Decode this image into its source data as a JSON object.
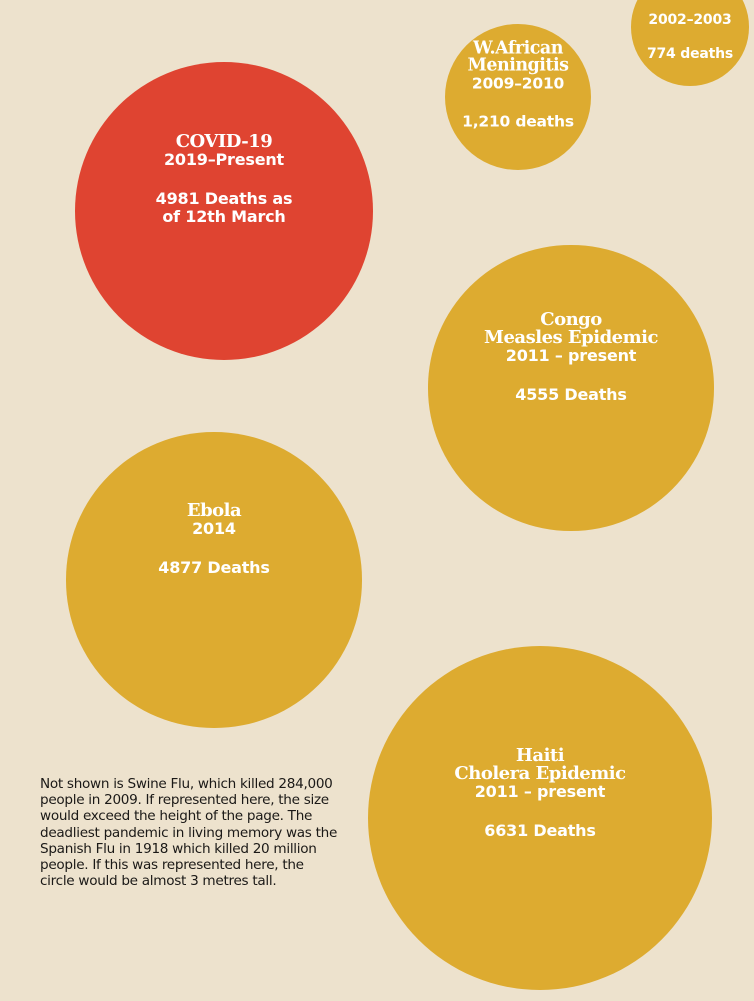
{
  "chart_data": {
    "type": "bubble",
    "title": "",
    "series": [
      {
        "name": "COVID-19",
        "period": "2019–Present",
        "deaths_label": "4981 Deaths as of 12th March",
        "deaths": 4981,
        "color": "#df4431"
      },
      {
        "name": "Haiti Cholera Epidemic",
        "period": "2011 – present",
        "deaths_label": "6631 Deaths",
        "deaths": 6631,
        "color": "#ddab30"
      },
      {
        "name": "Ebola",
        "period": "2014",
        "deaths_label": "4877 Deaths",
        "deaths": 4877,
        "color": "#ddab30"
      },
      {
        "name": "Congo Measles Epidemic",
        "period": "2011 – present",
        "deaths_label": "4555 Deaths",
        "deaths": 4555,
        "color": "#ddab30"
      },
      {
        "name": "W. African Meningitis",
        "period": "2009–2010",
        "deaths_label": "1,210 deaths",
        "deaths": 1210,
        "color": "#ddab30"
      },
      {
        "name": "",
        "period": "2002–2003",
        "deaths_label": "774 deaths",
        "deaths": 774,
        "color": "#ddab30"
      }
    ]
  },
  "footnote": "Not shown is Swine Flu, which killed 284,000 people in 2009. If represented here, the size would exceed the height of the page. The deadliest pandemic in living memory was the Spanish Flu in 1918 which killed 20 million people. If this was represented here, the circle would be almost 3 metres tall."
}
